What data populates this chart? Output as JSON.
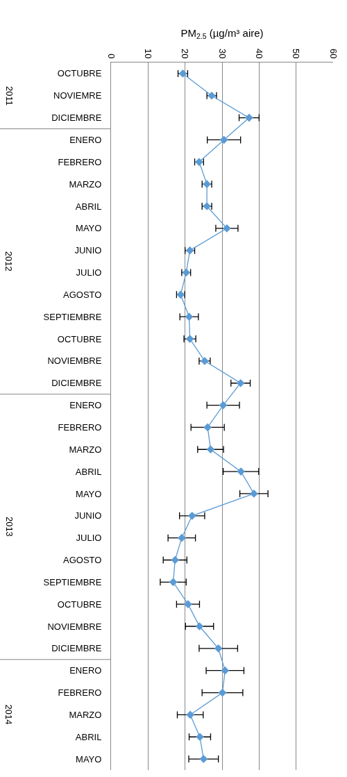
{
  "chart_data": {
    "type": "line",
    "orientation": "horizontal",
    "xlabel": "PM$_{2.5}$ (µg/m³ aire)",
    "categories": [
      "OCTUBRE",
      "NOVIEMRE",
      "DICIEMBRE",
      "ENERO",
      "FEBRERO",
      "MARZO",
      "ABRIL",
      "MAYO",
      "JUNIO",
      "JULIO",
      "AGOSTO",
      "SEPTIEMBRE",
      "OCTUBRE",
      "NOVIEMBRE",
      "DICIEMBRE",
      "ENERO",
      "FEBRERO",
      "MARZO",
      "ABRIL",
      "MAYO",
      "JUNIO",
      "JULIO",
      "AGOSTO",
      "SEPTIEMBRE",
      "OCTUBRE",
      "NOVIEMBRE",
      "DICIEMBRE",
      "ENERO",
      "FEBRERO",
      "MARZO",
      "ABRIL",
      "MAYO"
    ],
    "series": [
      {
        "color": "#5b9bd5",
        "values": [
          19.4,
          27.2,
          37.3,
          30.5,
          23.8,
          25.9,
          25.9,
          31.3,
          21.3,
          20.3,
          18.8,
          21.1,
          21.3,
          25.3,
          35,
          30.3,
          26.1,
          26.9,
          35.1,
          38.6,
          21.9,
          19.1,
          17.3,
          16.8,
          20.8,
          23.9,
          29,
          30.8,
          30.1,
          21.4,
          24,
          25
        ],
        "errors": [
          1.3,
          1.3,
          2.7,
          4.5,
          1.2,
          1.3,
          1.3,
          3,
          1.3,
          1.2,
          1.1,
          2.5,
          1.6,
          1.5,
          2.6,
          4.4,
          4.5,
          3.5,
          4.8,
          3.8,
          3.4,
          3.7,
          3.2,
          3.5,
          3.1,
          3.8,
          5.2,
          5.1,
          5.5,
          3.5,
          2.9,
          4
        ]
      }
    ],
    "xlim": [
      0,
      60
    ],
    "xticks": [
      0,
      10,
      20,
      30,
      40,
      50,
      60
    ],
    "grid": "x",
    "marker": "diamond",
    "line_style": "solid",
    "annotations": [
      "2011",
      "2012",
      "2013",
      "2014"
    ]
  }
}
